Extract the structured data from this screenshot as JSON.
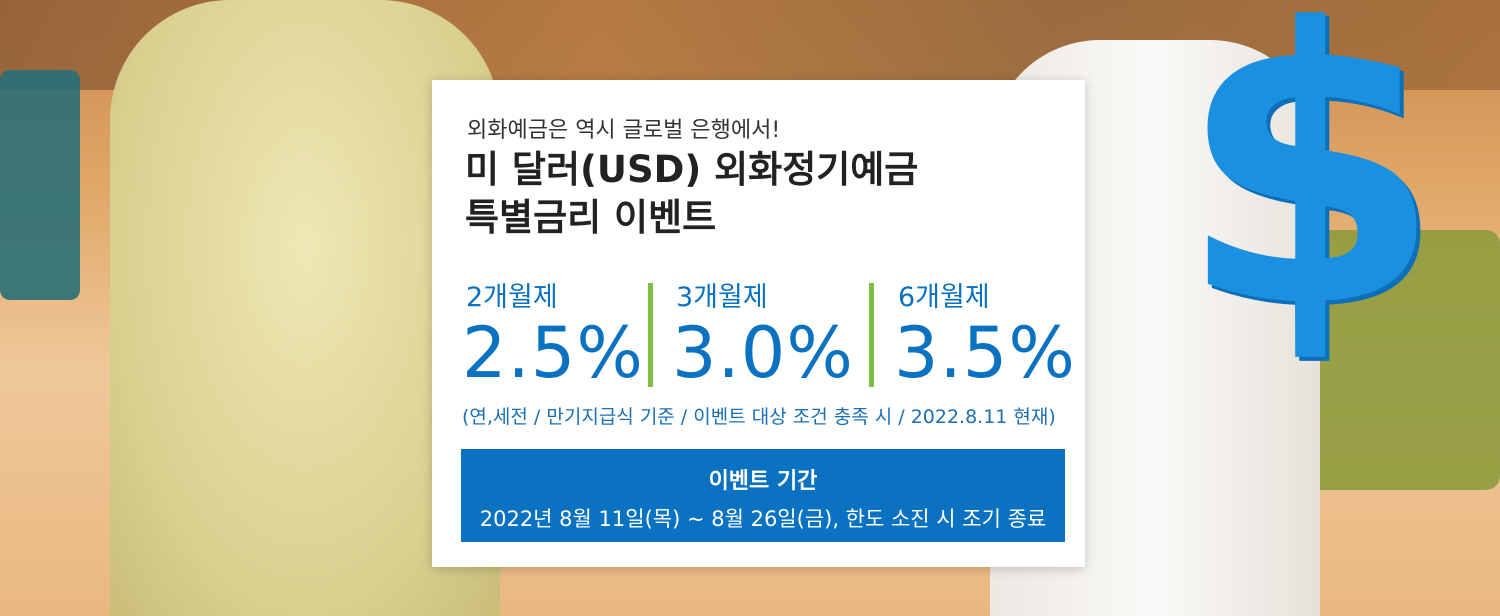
{
  "banner": {
    "subtitle": "외화예금은 역시 글로벌 은행에서!",
    "title_line1": "미 달러(USD) 외화정기예금",
    "title_line2": "특별금리 이벤트",
    "rates": [
      {
        "term": "2개월제",
        "rate": "2.5%"
      },
      {
        "term": "3개월제",
        "rate": "3.0%"
      },
      {
        "term": "6개월제",
        "rate": "3.5%"
      }
    ],
    "note": "(연,세전 / 만기지급식 기준 / 이벤트 대상 조건 충족 시 / 2022.8.11 현재)",
    "period_heading": "이벤트 기간",
    "period_text": "2022년 8월 11일(목) ~ 8월 26일(금), 한도 소진 시 조기 종료",
    "dollar_sign": "$"
  },
  "colors": {
    "accent_blue": "#0a72c0",
    "divider_green": "#7dc142",
    "dollar_blue": "#1b8fe0"
  }
}
